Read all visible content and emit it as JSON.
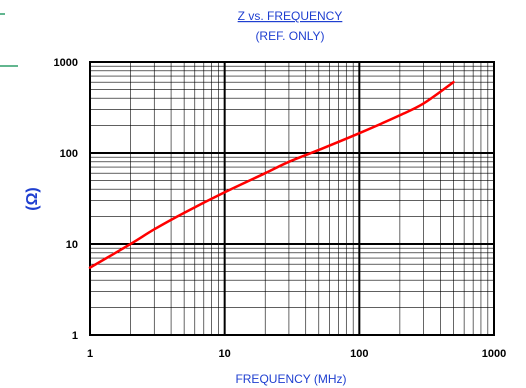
{
  "chart_data": {
    "type": "line",
    "title": "Z  vs.  FREQUENCY",
    "subtitle": "(REF.  ONLY)",
    "xlabel": "FREQUENCY  (MHz)",
    "ylabel": "(Ω)",
    "x_scale": "log",
    "y_scale": "log",
    "xlim": [
      1,
      1000
    ],
    "ylim": [
      1,
      1000
    ],
    "x_ticks": [
      "1",
      "10",
      "100",
      "1000"
    ],
    "y_ticks": [
      "1",
      "10",
      "100",
      "1000"
    ],
    "grid": true,
    "legend": "none",
    "series": [
      {
        "color": "#ff0000",
        "x": [
          1,
          2,
          3,
          5,
          10,
          20,
          30,
          50,
          100,
          200,
          300,
          500
        ],
        "y": [
          5.5,
          10,
          14.5,
          22,
          37,
          60,
          80,
          108,
          165,
          260,
          350,
          600
        ]
      }
    ]
  },
  "decor": {
    "accent_color": "#2e9e6a"
  }
}
